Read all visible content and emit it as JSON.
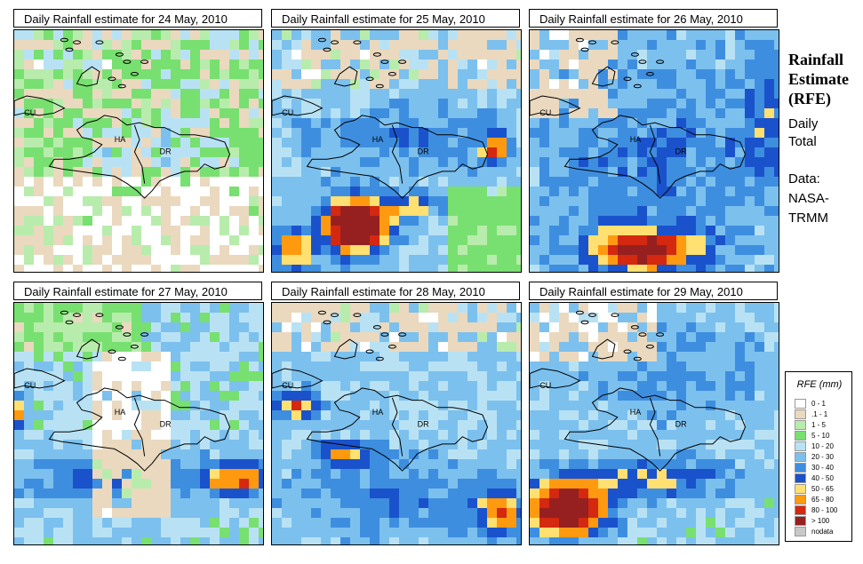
{
  "panels": [
    {
      "title": "Daily Rainfall estimate for  24 May, 2010",
      "scenario": "p24"
    },
    {
      "title": "Daily Rainfall estimate for  25 May, 2010",
      "scenario": "p25"
    },
    {
      "title": "Daily Rainfall estimate for  26 May, 2010",
      "scenario": "p26"
    },
    {
      "title": "Daily Rainfall estimate for  27 May, 2010",
      "scenario": "p27"
    },
    {
      "title": "Daily Rainfall estimate for  28 May, 2010",
      "scenario": "p28"
    },
    {
      "title": "Daily Rainfall estimate for  29 May, 2010",
      "scenario": "p29"
    }
  ],
  "map_labels": {
    "cu": "CU",
    "ha": "HA",
    "dr": "DR"
  },
  "side": {
    "title": "Rainfall\nEstimate\n(RFE)",
    "subtitle": "Daily\nTotal",
    "source": "Data:\nNASA-\nTRMM"
  },
  "legend": {
    "title": "RFE (mm)",
    "items": [
      {
        "label": "0 - 1",
        "color": "#ffffff"
      },
      {
        "label": ".1 - 1",
        "color": "#ead9bf"
      },
      {
        "label": "1 - 5",
        "color": "#b8ecac"
      },
      {
        "label": "5 - 10",
        "color": "#78e070"
      },
      {
        "label": "10 - 20",
        "color": "#b8e2f4"
      },
      {
        "label": "20 - 30",
        "color": "#7cc0ee"
      },
      {
        "label": "30 - 40",
        "color": "#3e8ee0"
      },
      {
        "label": "40 - 50",
        "color": "#1a52cc"
      },
      {
        "label": "50 - 65",
        "color": "#ffe070"
      },
      {
        "label": "65 - 80",
        "color": "#ff9a10"
      },
      {
        "label": "80 - 100",
        "color": "#d42810"
      },
      {
        "label": "> 100",
        "color": "#962020"
      },
      {
        "label": "nodata",
        "color": "#c8c8c8"
      }
    ]
  }
}
